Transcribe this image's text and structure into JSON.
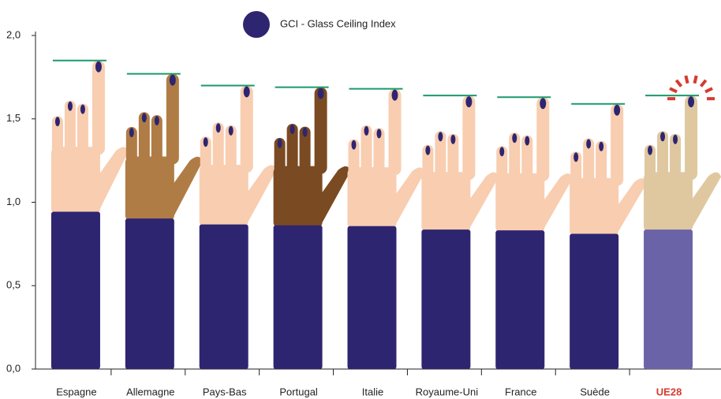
{
  "chart_data": {
    "type": "bar",
    "categories": [
      "Espagne",
      "Allemagne",
      "Pays-Bas",
      "Portugal",
      "Italie",
      "Royaume-Uni",
      "France",
      "Suède",
      "UE28"
    ],
    "series": [
      {
        "name": "GCI - Glass Ceiling Index",
        "color": "#2e2570",
        "values": [
          1.85,
          1.77,
          1.7,
          1.69,
          1.68,
          1.64,
          1.63,
          1.59,
          1.64
        ]
      }
    ],
    "line_color": "#1a9a6a",
    "sleeve_colors": [
      "#2e2570",
      "#2e2570",
      "#2e2570",
      "#2e2570",
      "#2e2570",
      "#2e2570",
      "#2e2570",
      "#2e2570",
      "#6b63a8"
    ],
    "skin_colors": [
      "#f8cdb0",
      "#b07c45",
      "#f8cdb0",
      "#7a4a22",
      "#f8cdb0",
      "#f8cdb0",
      "#f8cdb0",
      "#f8cdb0",
      "#dfc8a0"
    ],
    "label_colors": [
      "#222222",
      "#222222",
      "#222222",
      "#222222",
      "#222222",
      "#222222",
      "#222222",
      "#222222",
      "#d63b2f"
    ],
    "ylim": [
      0,
      2
    ],
    "yticks": [
      {
        "value": 0,
        "label": "0,0"
      },
      {
        "value": 0.5,
        "label": "0,5"
      },
      {
        "value": 1,
        "label": "1,0"
      },
      {
        "value": 1.5,
        "label": "1,5"
      },
      {
        "value": 2,
        "label": "2,0"
      }
    ]
  }
}
